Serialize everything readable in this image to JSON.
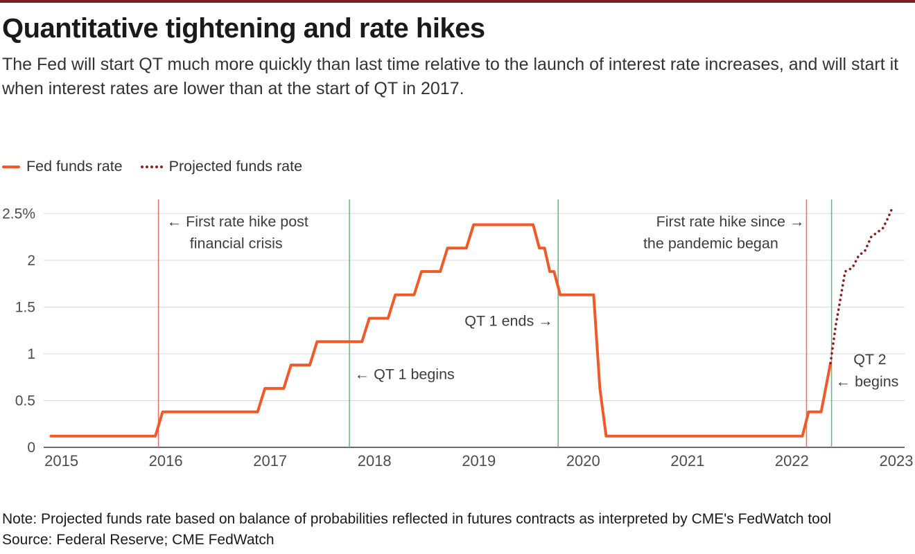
{
  "page": {
    "title": "Quantitative tightening and rate hikes",
    "subtitle": "The Fed will start QT much more quickly than last time relative to the launch of interest rate increases, and will start it when interest rates are lower than at the start of QT in 2017.",
    "note": "Note: Projected funds rate based on balance of probabilities reflected in futures contracts as interpreted by CME's FedWatch tool",
    "source": "Source: Federal Reserve; CME FedWatch"
  },
  "colors": {
    "top_bar": "#7b1e24"
  },
  "legend": [
    {
      "label": "Fed funds rate",
      "type": "solid",
      "color": "#f05a28"
    },
    {
      "label": "Projected funds rate",
      "type": "dotted",
      "color": "#8e1c20"
    }
  ],
  "chart_data": {
    "type": "line",
    "title": "Quantitative tightening and rate hikes",
    "xlabel": "",
    "ylabel": "",
    "x_range": [
      2014.83,
      2023.08
    ],
    "y_range": [
      0,
      2.68
    ],
    "x_ticks": [
      2015,
      2016,
      2017,
      2018,
      2019,
      2020,
      2021,
      2022,
      2023
    ],
    "y_ticks": [
      {
        "v": 0,
        "label": "0"
      },
      {
        "v": 0.5,
        "label": "0.5"
      },
      {
        "v": 1,
        "label": "1"
      },
      {
        "v": 1.5,
        "label": "1.5"
      },
      {
        "v": 2,
        "label": "2"
      },
      {
        "v": 2.5,
        "label": "2.5%"
      }
    ],
    "grid": "horizontal",
    "legend_position": "top-left",
    "colors": {
      "grid": "#d9d9d9",
      "baseline": "#3a3a3a",
      "axis_text": "#4c4c4c",
      "annotation": "#3d3d3d"
    },
    "series": [
      {
        "name": "Fed funds rate",
        "style": "solid",
        "color": "#f05a28",
        "points": [
          [
            2014.9,
            0.12
          ],
          [
            2015.9,
            0.12
          ],
          [
            2015.97,
            0.38
          ],
          [
            2016.88,
            0.38
          ],
          [
            2016.95,
            0.63
          ],
          [
            2017.13,
            0.63
          ],
          [
            2017.2,
            0.88
          ],
          [
            2017.38,
            0.88
          ],
          [
            2017.45,
            1.13
          ],
          [
            2017.88,
            1.13
          ],
          [
            2017.95,
            1.38
          ],
          [
            2018.13,
            1.38
          ],
          [
            2018.2,
            1.63
          ],
          [
            2018.38,
            1.63
          ],
          [
            2018.45,
            1.88
          ],
          [
            2018.63,
            1.88
          ],
          [
            2018.7,
            2.13
          ],
          [
            2018.88,
            2.13
          ],
          [
            2018.95,
            2.38
          ],
          [
            2019.52,
            2.38
          ],
          [
            2019.58,
            2.13
          ],
          [
            2019.63,
            2.13
          ],
          [
            2019.68,
            1.88
          ],
          [
            2019.72,
            1.88
          ],
          [
            2019.78,
            1.63
          ],
          [
            2020.1,
            1.63
          ],
          [
            2020.16,
            0.63
          ],
          [
            2020.22,
            0.12
          ],
          [
            2022.1,
            0.12
          ],
          [
            2022.16,
            0.38
          ],
          [
            2022.28,
            0.38
          ],
          [
            2022.37,
            0.9
          ]
        ]
      },
      {
        "name": "Projected funds rate",
        "style": "dotted",
        "color": "#8e1c20",
        "points": [
          [
            2022.37,
            0.9
          ],
          [
            2022.42,
            1.3
          ],
          [
            2022.47,
            1.62
          ],
          [
            2022.51,
            1.88
          ],
          [
            2022.58,
            1.92
          ],
          [
            2022.64,
            2.05
          ],
          [
            2022.7,
            2.1
          ],
          [
            2022.76,
            2.25
          ],
          [
            2022.82,
            2.3
          ],
          [
            2022.87,
            2.34
          ],
          [
            2022.92,
            2.45
          ],
          [
            2022.97,
            2.58
          ]
        ]
      }
    ],
    "event_lines": [
      {
        "x": 2015.93,
        "color": "#e0756d",
        "label": "First rate hike post financial crisis"
      },
      {
        "x": 2017.76,
        "color": "#74b587",
        "label": "QT 1 begins"
      },
      {
        "x": 2019.76,
        "color": "#74b587",
        "label": "QT 1 ends"
      },
      {
        "x": 2022.14,
        "color": "#e0756d",
        "label": "First rate hike since the pandemic began"
      },
      {
        "x": 2022.38,
        "color": "#74b587",
        "label": "QT 2 begins"
      }
    ],
    "annotations": [
      {
        "text": "← First rate hike post",
        "x": 2016.01,
        "y": 2.36,
        "anchor": "start"
      },
      {
        "text": "financial crisis",
        "x": 2016.23,
        "y": 2.13,
        "anchor": "start"
      },
      {
        "text": "← QT 1 begins",
        "x": 2017.81,
        "y": 0.73,
        "anchor": "start"
      },
      {
        "text": "QT 1 ends →",
        "x": 2019.71,
        "y": 1.3,
        "anchor": "end"
      },
      {
        "text": "First rate hike since →",
        "x": 2022.12,
        "y": 2.36,
        "anchor": "end"
      },
      {
        "text": "the pandemic  began",
        "x": 2021.87,
        "y": 2.13,
        "anchor": "end"
      },
      {
        "text": "QT 2",
        "x": 2022.59,
        "y": 0.89,
        "anchor": "start"
      },
      {
        "text": "← begins",
        "x": 2022.42,
        "y": 0.65,
        "anchor": "start"
      }
    ]
  }
}
